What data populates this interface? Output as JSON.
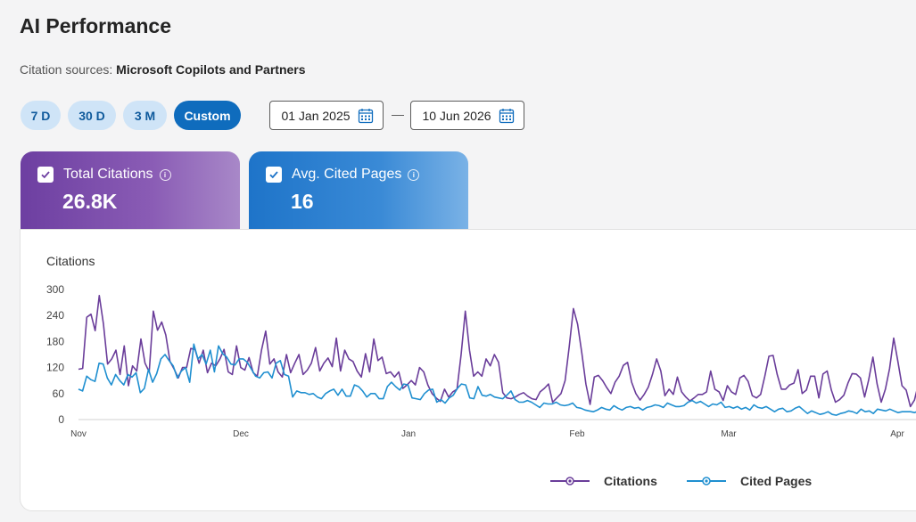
{
  "page": {
    "title": "AI Performance",
    "sources_label": "Citation sources:",
    "sources_value": "Microsoft Copilots and Partners"
  },
  "ranges": [
    {
      "label": "7 D",
      "active": false
    },
    {
      "label": "30 D",
      "active": false
    },
    {
      "label": "3 M",
      "active": false
    },
    {
      "label": "Custom",
      "active": true
    }
  ],
  "dates": {
    "start": "01 Jan 2025",
    "end": "10 Jun 2026",
    "separator": "—"
  },
  "cards": [
    {
      "label": "Total Citations",
      "value": "26.8K",
      "checked": true,
      "color": "#6d3fa1",
      "info_icon": "info-icon"
    },
    {
      "label": "Avg. Cited Pages",
      "value": "16",
      "checked": true,
      "color": "#1e74c9",
      "info_icon": "info-icon"
    }
  ],
  "chart_data": {
    "type": "line",
    "ylabel": "Citations",
    "ylim": [
      0,
      300
    ],
    "yticks": [
      0,
      60,
      120,
      180,
      240,
      300
    ],
    "xticks": [
      "Nov",
      "Dec",
      "Jan",
      "Feb",
      "Mar",
      "Apr"
    ],
    "legend": "bottom-center",
    "grid": false,
    "series": [
      {
        "name": "Citations",
        "color": "#6a3d9a",
        "values": [
          116,
          118,
          236,
          243,
          205,
          286,
          220,
          128,
          140,
          160,
          104,
          170,
          78,
          124,
          112,
          186,
          130,
          110,
          250,
          206,
          225,
          195,
          134,
          116,
          96,
          120,
          120,
          164,
          162,
          130,
          160,
          108,
          130,
          124,
          140,
          162,
          110,
          104,
          170,
          120,
          114,
          143,
          108,
          100,
          160,
          204,
          128,
          140,
          110,
          98,
          150,
          108,
          130,
          150,
          104,
          114,
          130,
          166,
          112,
          130,
          142,
          122,
          188,
          112,
          160,
          140,
          134,
          112,
          98,
          152,
          110,
          186,
          136,
          144,
          106,
          110,
          98,
          110,
          72,
          80,
          90,
          80,
          120,
          110,
          80,
          60,
          50,
          42,
          70,
          52,
          64,
          70,
          150,
          250,
          160,
          100,
          110,
          100,
          140,
          124,
          150,
          132,
          62,
          50,
          48,
          52,
          58,
          62,
          54,
          48,
          46,
          64,
          72,
          82,
          40,
          50,
          60,
          90,
          170,
          256,
          220,
          154,
          82,
          35,
          98,
          102,
          90,
          74,
          60,
          86,
          100,
          125,
          132,
          86,
          60,
          45,
          58,
          75,
          104,
          140,
          112,
          55,
          70,
          58,
          98,
          64,
          52,
          43,
          50,
          58,
          58,
          64,
          112,
          70,
          64,
          44,
          78,
          64,
          58,
          96,
          102,
          88,
          55,
          50,
          58,
          100,
          146,
          148,
          104,
          70,
          70,
          80,
          84,
          115,
          60,
          68,
          100,
          100,
          50,
          105,
          112,
          68,
          40,
          46,
          56,
          84,
          106,
          105,
          96,
          52,
          92,
          144,
          82,
          40,
          70,
          118,
          188,
          134,
          78,
          68,
          30,
          45,
          85
        ],
        "notes": "approximate values read from the plot, one per day from Nov to early Apr"
      },
      {
        "name": "Cited Pages",
        "color": "#1f8fd0",
        "values": [
          70,
          66,
          100,
          92,
          88,
          130,
          128,
          96,
          80,
          104,
          90,
          80,
          104,
          98,
          108,
          62,
          72,
          116,
          86,
          106,
          140,
          150,
          136,
          124,
          96,
          112,
          120,
          86,
          174,
          140,
          150,
          128,
          160,
          110,
          170,
          152,
          144,
          128,
          126,
          140,
          140,
          132,
          116,
          100,
          96,
          108,
          110,
          96,
          130,
          136,
          104,
          100,
          52,
          66,
          62,
          62,
          58,
          60,
          52,
          48,
          60,
          66,
          70,
          56,
          70,
          54,
          54,
          80,
          76,
          66,
          52,
          60,
          60,
          48,
          48,
          76,
          86,
          76,
          68,
          82,
          80,
          50,
          48,
          46,
          60,
          68,
          70,
          40,
          46,
          38,
          50,
          56,
          72,
          82,
          80,
          50,
          48,
          76,
          56,
          54,
          58,
          52,
          50,
          48,
          56,
          66,
          46,
          40,
          40,
          44,
          40,
          34,
          28,
          38,
          36,
          36,
          40,
          34,
          32,
          34,
          38,
          28,
          26,
          22,
          20,
          18,
          22,
          28,
          24,
          22,
          32,
          26,
          22,
          28,
          30,
          26,
          28,
          22,
          28,
          30,
          34,
          32,
          28,
          38,
          34,
          30,
          30,
          32,
          40,
          44,
          38,
          42,
          36,
          30,
          36,
          34,
          40,
          28,
          30,
          26,
          30,
          24,
          28,
          22,
          34,
          28,
          26,
          30,
          24,
          18,
          24,
          26,
          18,
          20,
          26,
          30,
          22,
          14,
          20,
          16,
          12,
          14,
          18,
          12,
          10,
          14,
          16,
          20,
          18,
          14,
          24,
          18,
          20,
          14,
          24,
          22,
          20,
          24,
          20,
          16,
          18,
          18,
          18,
          16,
          20
        ],
        "notes": "approximate values read from the plot"
      }
    ]
  }
}
